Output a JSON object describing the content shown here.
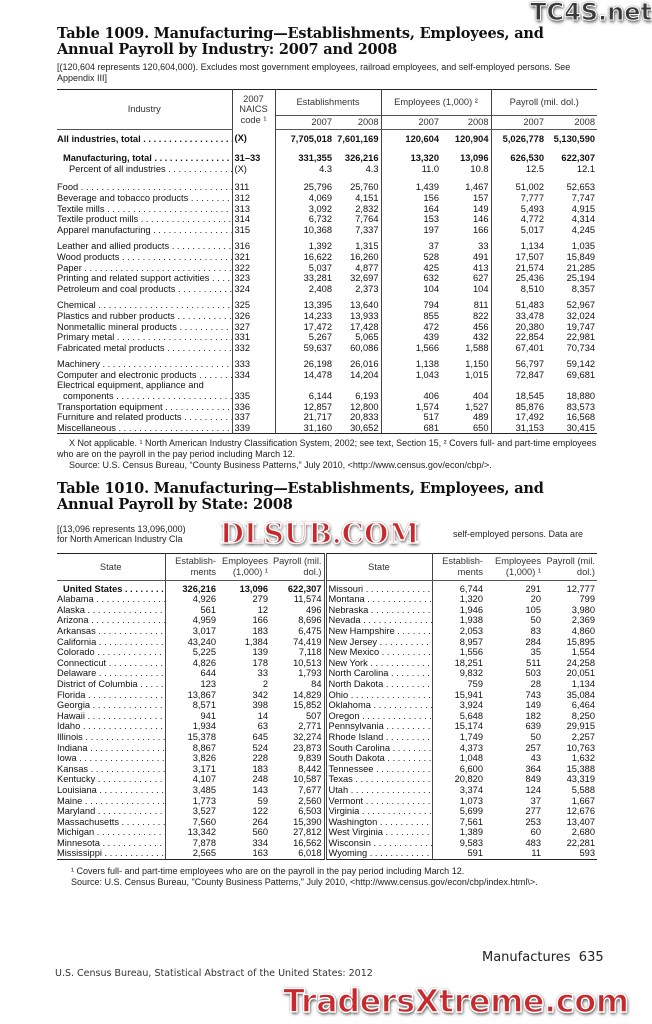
{
  "watermarks": {
    "top_right": "TC4S.net",
    "middle": "DLSUB.COM",
    "bottom": "TradersXtreme.com"
  },
  "table1009": {
    "title": "Table 1009. Manufacturing—Establishments, Employees, and Annual Payroll by Industry: 2007 and 2008",
    "note": "[(120,604 represents 120,604,000). Excludes most government employees, railroad employees, and self-employed persons. See Appendix III]",
    "headers": {
      "industry": "Industry",
      "naics": "2007 NAICS code ¹",
      "establishments": "Establishments",
      "employees": "Employees (1,000) ²",
      "payroll": "Payroll (mil. dol.)",
      "y2007": "2007",
      "y2008": "2008"
    },
    "rows": [
      {
        "label": "All industries, total",
        "code": "(X)",
        "v": [
          "7,705,018",
          "7,601,169",
          "120,604",
          "120,904",
          "5,026,778",
          "5,130,590"
        ],
        "bold": true,
        "gap": true
      },
      {
        "label": "Manufacturing, total",
        "code": "31–33",
        "v": [
          "331,355",
          "326,216",
          "13,320",
          "13,096",
          "626,530",
          "622,307"
        ],
        "bold": true,
        "indent": 1,
        "gap": true
      },
      {
        "label": "Percent of all industries",
        "code": "(X)",
        "v": [
          "4.3",
          "4.3",
          "11.0",
          "10.8",
          "12.5",
          "12.1"
        ],
        "indent": 2
      },
      {
        "label": "Food",
        "code": "311",
        "v": [
          "25,796",
          "25,760",
          "1,439",
          "1,467",
          "51,002",
          "52,653"
        ],
        "gap": true
      },
      {
        "label": "Beverage and tobacco products",
        "code": "312",
        "v": [
          "4,069",
          "4,151",
          "156",
          "157",
          "7,777",
          "7,747"
        ]
      },
      {
        "label": "Textile mills",
        "code": "313",
        "v": [
          "3,092",
          "2,832",
          "164",
          "149",
          "5,493",
          "4,915"
        ]
      },
      {
        "label": "Textile product mills",
        "code": "314",
        "v": [
          "6,732",
          "7,764",
          "153",
          "146",
          "4,772",
          "4,314"
        ]
      },
      {
        "label": "Apparel manufacturing",
        "code": "315",
        "v": [
          "10,368",
          "7,337",
          "197",
          "166",
          "5,017",
          "4,245"
        ]
      },
      {
        "label": "Leather and allied products",
        "code": "316",
        "v": [
          "1,392",
          "1,315",
          "37",
          "33",
          "1,134",
          "1,035"
        ],
        "gap": true
      },
      {
        "label": "Wood products",
        "code": "321",
        "v": [
          "16,622",
          "16,260",
          "528",
          "491",
          "17,507",
          "15,849"
        ]
      },
      {
        "label": "Paper",
        "code": "322",
        "v": [
          "5,037",
          "4,877",
          "425",
          "413",
          "21,574",
          "21,285"
        ]
      },
      {
        "label": "Printing and related support activities",
        "code": "323",
        "v": [
          "33,281",
          "32,697",
          "632",
          "627",
          "25,436",
          "25,194"
        ]
      },
      {
        "label": "Petroleum and coal products",
        "code": "324",
        "v": [
          "2,408",
          "2,373",
          "104",
          "104",
          "8,510",
          "8,357"
        ]
      },
      {
        "label": "Chemical",
        "code": "325",
        "v": [
          "13,395",
          "13,640",
          "794",
          "811",
          "51,483",
          "52,967"
        ],
        "gap": true
      },
      {
        "label": "Plastics and rubber products",
        "code": "326",
        "v": [
          "14,233",
          "13,933",
          "855",
          "822",
          "33,478",
          "32,024"
        ]
      },
      {
        "label": "Nonmetallic mineral products",
        "code": "327",
        "v": [
          "17,472",
          "17,428",
          "472",
          "456",
          "20,380",
          "19,747"
        ]
      },
      {
        "label": "Primary metal",
        "code": "331",
        "v": [
          "5,267",
          "5,065",
          "439",
          "432",
          "22,854",
          "22,981"
        ]
      },
      {
        "label": "Fabricated metal products",
        "code": "332",
        "v": [
          "59,637",
          "60,086",
          "1,566",
          "1,588",
          "67,401",
          "70,734"
        ]
      },
      {
        "label": "Machinery",
        "code": "333",
        "v": [
          "26,198",
          "26,016",
          "1,138",
          "1,150",
          "56,797",
          "59,142"
        ],
        "gap": true
      },
      {
        "label": "Computer and electronic products",
        "code": "334",
        "v": [
          "14,478",
          "14,204",
          "1,043",
          "1,015",
          "72,847",
          "69,681"
        ]
      },
      {
        "label": "Electrical equipment, appliance and",
        "code": "",
        "v": [
          "",
          "",
          "",
          "",
          "",
          ""
        ],
        "nodots": true
      },
      {
        "label": "components",
        "code": "335",
        "v": [
          "6,144",
          "6,193",
          "406",
          "404",
          "18,545",
          "18,880"
        ],
        "indent": 1
      },
      {
        "label": "Transportation equipment",
        "code": "336",
        "v": [
          "12,857",
          "12,800",
          "1,574",
          "1,527",
          "85,876",
          "83,573"
        ]
      },
      {
        "label": "Furniture and related products",
        "code": "337",
        "v": [
          "21,717",
          "20,833",
          "517",
          "489",
          "17,492",
          "16,568"
        ]
      },
      {
        "label": "Miscellaneous",
        "code": "339",
        "v": [
          "31,160",
          "30,652",
          "681",
          "650",
          "31,153",
          "30,415"
        ]
      }
    ],
    "footnote": "X Not applicable. ¹ North American Industry Classification System, 2002; see text, Section 15, ² Covers full- and part-time employees who are on the payroll in the pay period including March 12.",
    "source": "Source: U.S. Census Bureau, “County Business Patterns,” July 2010, <http://www.census.gov/econ/cbp/>."
  },
  "table1010": {
    "title": "Table 1010. Manufacturing—Establishments, Employees, and Annual Payroll by State: 2008",
    "note_visible_left": "[(13,096 represents 13,096,000)",
    "note_visible_right": "self-employed persons. Data are",
    "note_line2": "for North American Industry Cla",
    "headers": {
      "state": "State",
      "establishments": "Establish- ments",
      "employees": "Employees (1,000) ¹",
      "payroll": "Payroll (mil. dol.)"
    },
    "left": [
      [
        "United States",
        "326,216",
        "13,096",
        "622,307"
      ],
      [
        "Alabama",
        "4,926",
        "279",
        "11,574"
      ],
      [
        "Alaska",
        "561",
        "12",
        "496"
      ],
      [
        "Arizona",
        "4,959",
        "166",
        "8,696"
      ],
      [
        "Arkansas",
        "3,017",
        "183",
        "6,475"
      ],
      [
        "California",
        "43,240",
        "1,384",
        "74,419"
      ],
      [
        "Colorado",
        "5,225",
        "139",
        "7,118"
      ],
      [
        "Connecticut",
        "4,826",
        "178",
        "10,513"
      ],
      [
        "Delaware",
        "644",
        "33",
        "1,793"
      ],
      [
        "District of Columbia",
        "123",
        "2",
        "84"
      ],
      [
        "Florida",
        "13,867",
        "342",
        "14,829"
      ],
      [
        "Georgia",
        "8,571",
        "398",
        "15,852"
      ],
      [
        "Hawaii",
        "941",
        "14",
        "507"
      ],
      [
        "Idaho",
        "1,934",
        "63",
        "2,771"
      ],
      [
        "Illinois",
        "15,378",
        "645",
        "32,274"
      ],
      [
        "Indiana",
        "8,867",
        "524",
        "23,873"
      ],
      [
        "Iowa",
        "3,826",
        "228",
        "9,839"
      ],
      [
        "Kansas",
        "3,171",
        "183",
        "8,442"
      ],
      [
        "Kentucky",
        "4,107",
        "248",
        "10,587"
      ],
      [
        "Louisiana",
        "3,485",
        "143",
        "7,677"
      ],
      [
        "Maine",
        "1,773",
        "59",
        "2,560"
      ],
      [
        "Maryland",
        "3,527",
        "122",
        "6,503"
      ],
      [
        "Massachusetts",
        "7,560",
        "264",
        "15,390"
      ],
      [
        "Michigan",
        "13,342",
        "560",
        "27,812"
      ],
      [
        "Minnesota",
        "7,878",
        "334",
        "16,562"
      ],
      [
        "Mississippi",
        "2,565",
        "163",
        "6,018"
      ]
    ],
    "right": [
      [
        "Missouri",
        "6,744",
        "291",
        "12,777"
      ],
      [
        "Montana",
        "1,320",
        "20",
        "799"
      ],
      [
        "Nebraska",
        "1,946",
        "105",
        "3,980"
      ],
      [
        "Nevada",
        "1,938",
        "50",
        "2,369"
      ],
      [
        "New Hampshire",
        "2,053",
        "83",
        "4,860"
      ],
      [
        "New Jersey",
        "8,957",
        "284",
        "15,895"
      ],
      [
        "New Mexico",
        "1,556",
        "35",
        "1,554"
      ],
      [
        "New York",
        "18,251",
        "511",
        "24,258"
      ],
      [
        "North Carolina",
        "9,832",
        "503",
        "20,051"
      ],
      [
        "North Dakota",
        "759",
        "28",
        "1,134"
      ],
      [
        "Ohio",
        "15,941",
        "743",
        "35,084"
      ],
      [
        "Oklahoma",
        "3,924",
        "149",
        "6,464"
      ],
      [
        "Oregon",
        "5,648",
        "182",
        "8,250"
      ],
      [
        "Pennsylvania",
        "15,174",
        "639",
        "29,915"
      ],
      [
        "Rhode Island",
        "1,749",
        "50",
        "2,257"
      ],
      [
        "South Carolina",
        "4,373",
        "257",
        "10,763"
      ],
      [
        "South Dakota",
        "1,048",
        "43",
        "1,632"
      ],
      [
        "Tennessee",
        "6,600",
        "364",
        "15,388"
      ],
      [
        "Texas",
        "20,820",
        "849",
        "43,319"
      ],
      [
        "Utah",
        "3,374",
        "124",
        "5,588"
      ],
      [
        "Vermont",
        "1,073",
        "37",
        "1,667"
      ],
      [
        "Virginia",
        "5,699",
        "277",
        "12,676"
      ],
      [
        "Washington",
        "7,561",
        "253",
        "13,407"
      ],
      [
        "West Virginia",
        "1,389",
        "60",
        "2,680"
      ],
      [
        "Wisconsin",
        "9,583",
        "483",
        "22,281"
      ],
      [
        "Wyoming",
        "591",
        "11",
        "593"
      ]
    ],
    "footnote": "¹ Covers full- and part-time employees who are on the payroll in the pay period including March 12.",
    "source": "Source: U.S. Census Bureau, \"County Business Patterns,\" July 2010, <http://www.census.gov/econ/cbp/index.html\\>."
  },
  "page": {
    "section": "Manufactures",
    "number": "635",
    "publication": "U.S. Census Bureau, Statistical Abstract of the United States: 2012"
  }
}
